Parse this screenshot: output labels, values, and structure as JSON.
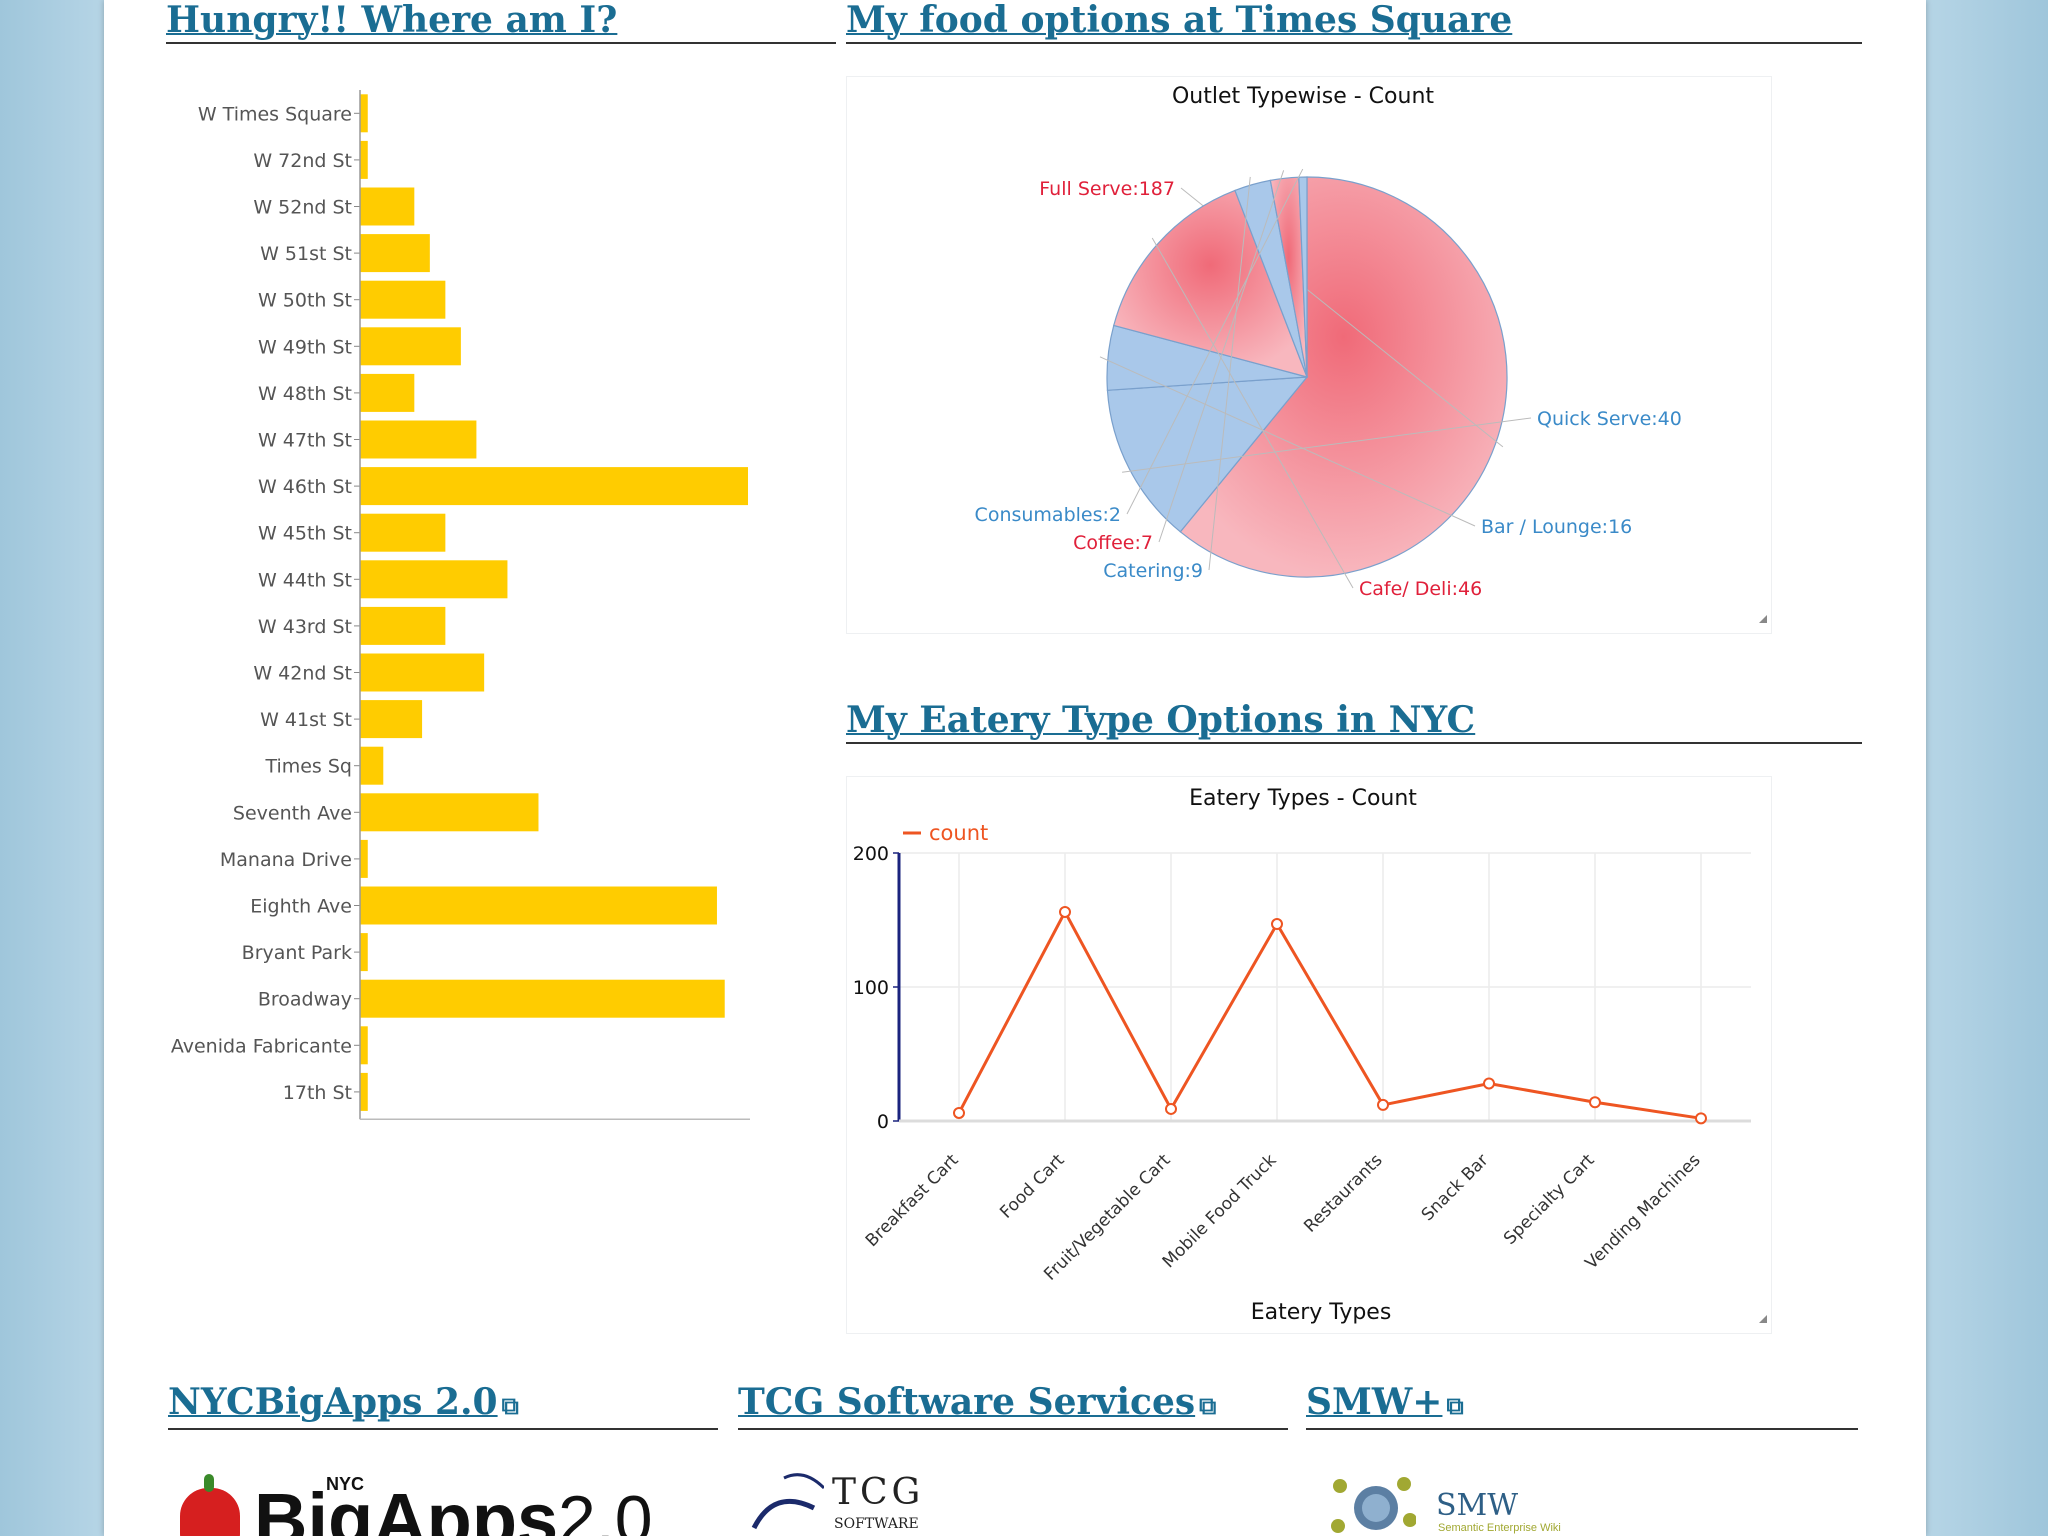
{
  "sections": {
    "hungry": "Hungry!! Where am I?",
    "food_options": "My food options at Times Square",
    "eatery_types": "My Eatery Type Options in NYC",
    "bigapps": "NYCBigApps 2.0",
    "tcg": "TCG Software Services",
    "smw": "SMW+"
  },
  "logos": {
    "bigapps_small": "NYC",
    "bigapps_big": "BigApps",
    "bigapps_ver": "2.0",
    "tcg_main": "TCG",
    "tcg_sub": "SOFTWARE",
    "smw_main": "SMW",
    "smw_sub": "Semantic Enterprise Wiki"
  },
  "chart_data": [
    {
      "type": "bar",
      "orientation": "horizontal",
      "categories": [
        "W Times Square",
        "W 72nd St",
        "W 52nd St",
        "W 51st St",
        "W 50th St",
        "W 49th St",
        "W 48th St",
        "W 47th St",
        "W 46th St",
        "W 45th St",
        "W 44th St",
        "W 43rd St",
        "W 42nd St",
        "W 41st St",
        "Times Sq",
        "Seventh Ave",
        "Manana Drive",
        "Eighth Ave",
        "Bryant Park",
        "Broadway",
        "Avenida Fabricante",
        "17th St"
      ],
      "values": [
        1,
        1,
        7,
        9,
        11,
        13,
        7,
        15,
        50,
        11,
        19,
        11,
        16,
        8,
        3,
        23,
        1,
        46,
        1,
        47,
        1,
        1
      ],
      "color": "#ffcc00"
    },
    {
      "type": "pie",
      "title": "Outlet Typewise - Count",
      "slices": [
        {
          "label": "Full Serve:187",
          "value": 187,
          "color": "#f4868f",
          "label_color": "#e0203a"
        },
        {
          "label": "Quick Serve:40",
          "value": 40,
          "color": "#a9c8ea",
          "label_color": "#3a8ac8"
        },
        {
          "label": "Bar / Lounge:16",
          "value": 16,
          "color": "#a9c8ea",
          "label_color": "#3a8ac8"
        },
        {
          "label": "Cafe/ Deli:46",
          "value": 46,
          "color": "#f4868f",
          "label_color": "#e0203a"
        },
        {
          "label": "Catering:9",
          "value": 9,
          "color": "#a9c8ea",
          "label_color": "#3a8ac8"
        },
        {
          "label": "Coffee:7",
          "value": 7,
          "color": "#f4868f",
          "label_color": "#e0203a"
        },
        {
          "label": "Consumables:2",
          "value": 2,
          "color": "#a9c8ea",
          "label_color": "#3a8ac8"
        }
      ]
    },
    {
      "type": "line",
      "title": "Eatery Types - Count",
      "xlabel": "Eatery Types",
      "ylim": [
        0,
        200
      ],
      "yticks": [
        "0",
        "100",
        "200"
      ],
      "categories": [
        "Breakfast Cart",
        "Food Cart",
        "Fruit/Vegetable Cart",
        "Mobile Food Truck",
        "Restaurants",
        "Snack Bar",
        "Specialty Cart",
        "Vending Machines"
      ],
      "series": [
        {
          "name": "count",
          "values": [
            6,
            156,
            9,
            147,
            12,
            28,
            14,
            2
          ],
          "color": "#ee5522"
        }
      ],
      "legend": "top-left"
    }
  ]
}
